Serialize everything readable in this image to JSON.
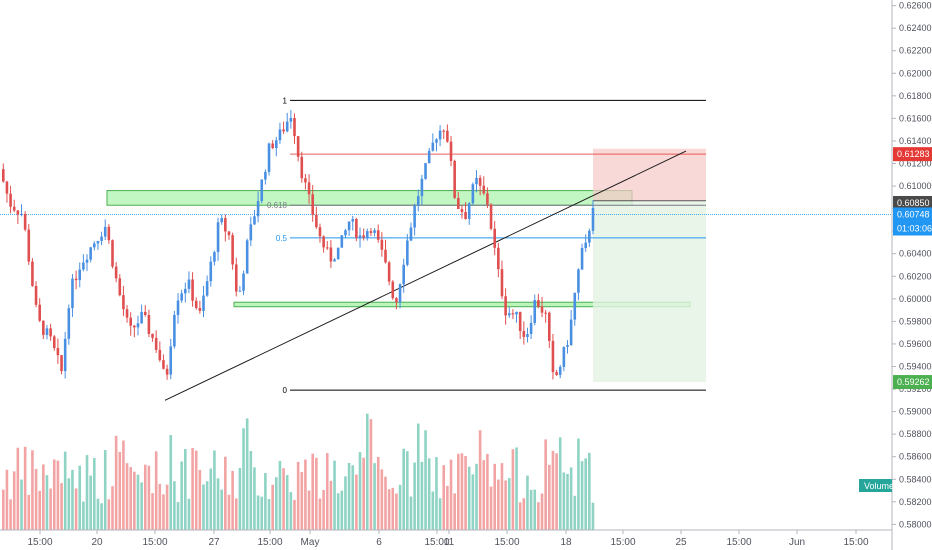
{
  "chart_data": {
    "type": "candlestick",
    "symbol_scale": {
      "ylim": [
        0.5795,
        0.6265
      ]
    },
    "y_ticks": [
      "0.62600",
      "0.62400",
      "0.62200",
      "0.62000",
      "0.61800",
      "0.61600",
      "0.61400",
      "0.61200",
      "0.61000",
      "0.60800",
      "0.60600",
      "0.60400",
      "0.60200",
      "0.60000",
      "0.59800",
      "0.59600",
      "0.59400",
      "0.59200",
      "0.59000",
      "0.58800",
      "0.58600",
      "0.58400",
      "0.58200",
      "0.58000"
    ],
    "x_ticks": [
      "15:00",
      "20",
      "15:00",
      "27",
      "15:00",
      "May",
      "6",
      "15:00",
      "11",
      "15:00",
      "18",
      "15:00",
      "25",
      "15:00",
      "Jun",
      "15:00"
    ],
    "fib_levels": [
      {
        "label": "1",
        "value": 0.6176,
        "color": "#000000"
      },
      {
        "label": "0.618",
        "value": 0.6083,
        "color": "#787b86"
      },
      {
        "label": "0.5",
        "value": 0.6054,
        "color": "#2196f3"
      },
      {
        "label": "0",
        "value": 0.5919,
        "color": "#000000"
      }
    ],
    "price_badges": [
      {
        "text": "0.61283",
        "value": 0.61283,
        "color": "#e53935"
      },
      {
        "text": "0.60850",
        "value": 0.6085,
        "color": "#4a4a4a"
      },
      {
        "text": "0.60748",
        "value": 0.60748,
        "color": "#2196f3"
      },
      {
        "text": "01:03:06",
        "value": 0.6071,
        "color": "#2196f3"
      },
      {
        "text": "0.59262",
        "value": 0.59262,
        "color": "#4caf50"
      }
    ],
    "volume_label": "Volume",
    "colors": {
      "up": "#4a90e2",
      "down": "#e04f4f",
      "vol_up": "#8fd3c5",
      "vol_down": "#f2a4a4",
      "zone": "#90ee90"
    },
    "candles": []
  }
}
